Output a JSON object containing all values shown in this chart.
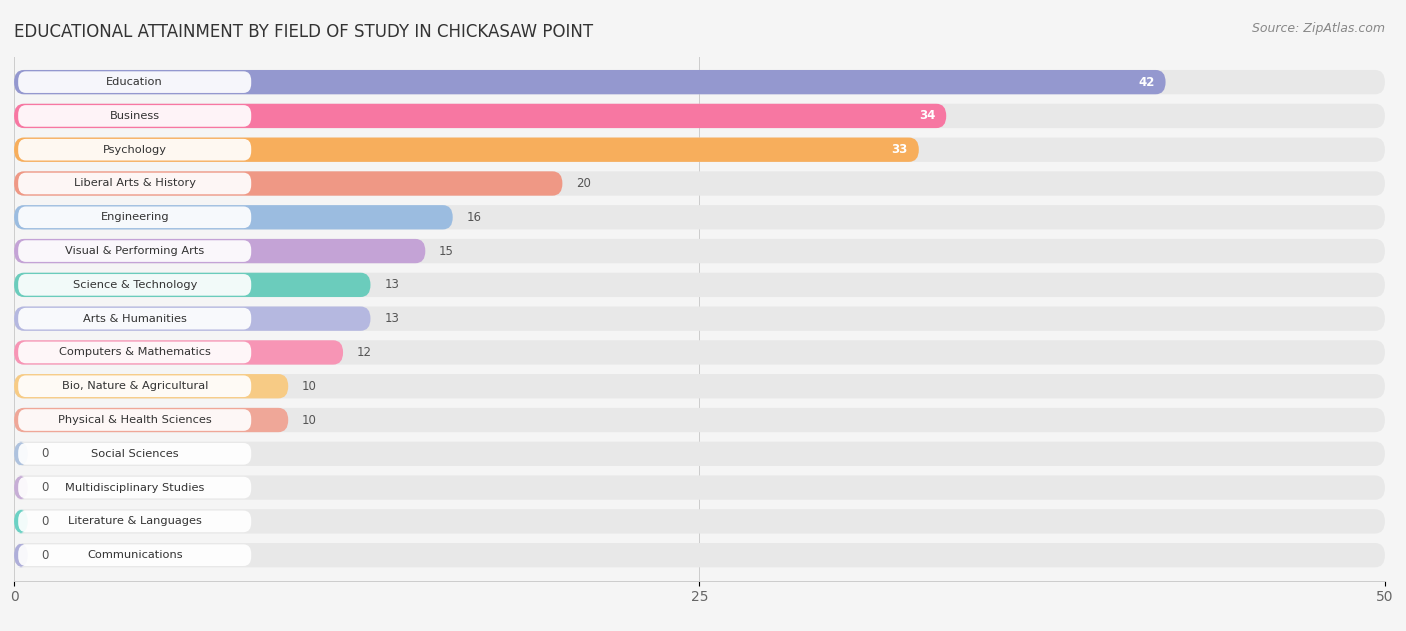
{
  "title": "EDUCATIONAL ATTAINMENT BY FIELD OF STUDY IN CHICKASAW POINT",
  "source": "Source: ZipAtlas.com",
  "categories": [
    "Education",
    "Business",
    "Psychology",
    "Liberal Arts & History",
    "Engineering",
    "Visual & Performing Arts",
    "Science & Technology",
    "Arts & Humanities",
    "Computers & Mathematics",
    "Bio, Nature & Agricultural",
    "Physical & Health Sciences",
    "Social Sciences",
    "Multidisciplinary Studies",
    "Literature & Languages",
    "Communications"
  ],
  "values": [
    42,
    34,
    33,
    20,
    16,
    15,
    13,
    13,
    12,
    10,
    10,
    0,
    0,
    0,
    0
  ],
  "bar_colors": [
    "#8b8fcd",
    "#f96b9b",
    "#f9a84d",
    "#f0907a",
    "#93b8e0",
    "#c19cd4",
    "#5ec9b8",
    "#b0b3e0",
    "#f98cb0",
    "#f9c87a",
    "#f0a090",
    "#a8bedd",
    "#c4a8d4",
    "#5ecfc0",
    "#a8a8d8"
  ],
  "xlim": [
    0,
    50
  ],
  "xticks": [
    0,
    25,
    50
  ],
  "bg_color": "#f5f5f5",
  "bar_bg_color": "#e8e8e8",
  "title_fontsize": 12,
  "source_fontsize": 9
}
